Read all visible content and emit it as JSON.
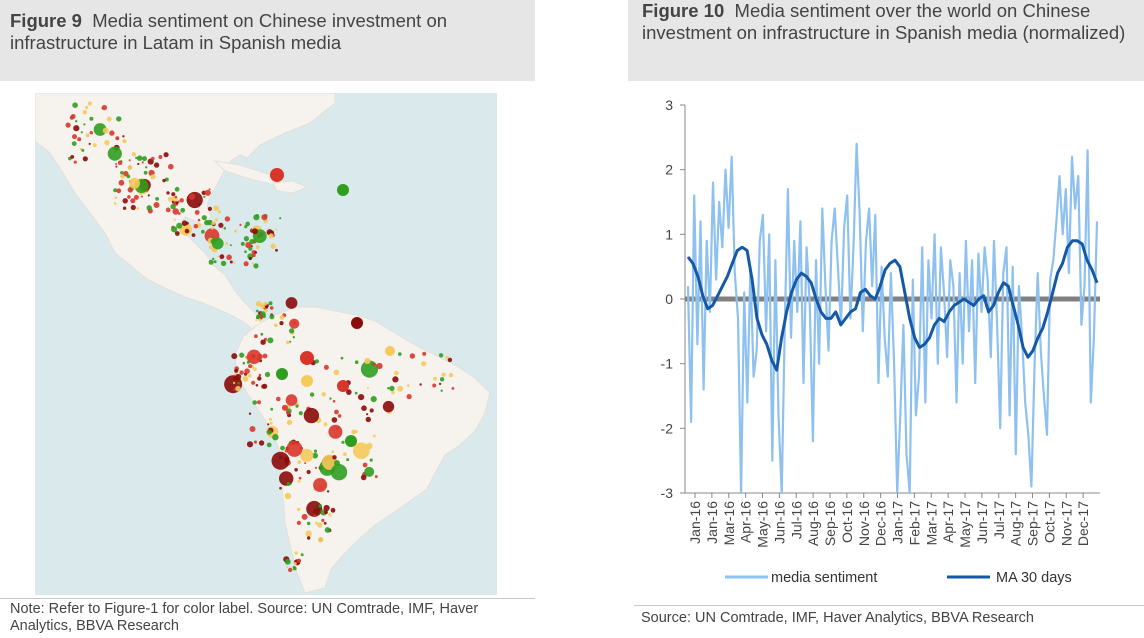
{
  "figure9": {
    "label": "Figure 9",
    "title": "Media sentiment on Chinese investment on infrastructure in Latam in Spanish media",
    "note": "Note: Refer to Figure-1 for color label.  Source: UN Comtrade, IMF, Haver Analytics, BBVA Research"
  },
  "figure10": {
    "label": "Figure 10",
    "title": "Media sentiment over the world on Chinese investment on infrastructure in Spanish media (normalized)",
    "note": "Source:  UN Comtrade, IMF, Haver Analytics, BBVA Research"
  },
  "colors": {
    "sea": "#d9e9ec",
    "land": "#f6f3ee",
    "positive": "#2f9e1f",
    "negative": "#d9362b",
    "dark_negative": "#8b0a0a",
    "neutral": "#f5c95a",
    "media_sentiment": "#8ec1ef",
    "ma30": "#1559a6",
    "zero_line": "#808080"
  },
  "chart_data": {
    "type": "line",
    "ylim": [
      -3,
      3
    ],
    "yticks": [
      "3",
      "2",
      "1",
      "0",
      "-1",
      "-2",
      "-3"
    ],
    "x_ticks": [
      "Jan-16",
      "Jan-16",
      "Mar-16",
      "Apr-16",
      "May-16",
      "Jun-16",
      "Jul-16",
      "Aug-16",
      "Sep-16",
      "Oct-16",
      "Nov-16",
      "Dec-16",
      "Jan-17",
      "Feb-17",
      "Mar-17",
      "Apr-17",
      "May-17",
      "Jun-17",
      "Jul-17",
      "Aug-17",
      "Sep-17",
      "Oct-17",
      "Nov-17",
      "Dec-17"
    ],
    "series": [
      {
        "name": "media sentiment",
        "color": "#8ec1ef",
        "values": [
          0.2,
          -1.9,
          1.6,
          -0.7,
          1.2,
          -1.4,
          0.9,
          -0.2,
          1.8,
          0.3,
          1.5,
          0.8,
          2.0,
          1.1,
          2.2,
          0.4,
          -0.3,
          -3.0,
          0.1,
          -1.6,
          0.5,
          -1.2,
          -0.8,
          0.9,
          1.3,
          -0.5,
          1.0,
          -2.5,
          0.6,
          -1.8,
          -3.0,
          -0.4,
          1.7,
          -0.6,
          0.9,
          -0.2,
          1.2,
          -1.3,
          0.8,
          -0.1,
          -2.2,
          0.6,
          -1.0,
          1.4,
          0.2,
          -0.8,
          0.9,
          1.4,
          0.5,
          -0.4,
          1.1,
          1.6,
          -0.3,
          0.8,
          2.4,
          1.3,
          -0.5,
          0.9,
          1.4,
          0.2,
          1.3,
          -1.3,
          0.5,
          -0.6,
          -1.2,
          0.4,
          -1.0,
          -3.0,
          -1.8,
          -0.4,
          -2.4,
          -3.0,
          0.3,
          -1.8,
          -1.2,
          0.8,
          -1.6,
          0.6,
          -0.3,
          1.0,
          -1.0,
          0.8,
          0.1,
          -0.9,
          0.6,
          0.2,
          -1.6,
          0.4,
          -1.0,
          0.9,
          -0.5,
          0.6,
          -1.3,
          0.7,
          -0.2,
          0.8,
          0.3,
          -0.9,
          0.9,
          -0.4,
          -2.0,
          0.4,
          0.8,
          -1.8,
          0.5,
          -2.4,
          0.2,
          -0.6,
          -1.6,
          -2.1,
          -2.9,
          -1.0,
          0.4,
          -0.8,
          -1.5,
          -2.1,
          0.3,
          0.6,
          1.2,
          1.9,
          1.0,
          1.7,
          0.4,
          2.2,
          1.4,
          1.9,
          -0.4,
          0.2,
          2.3,
          -1.6,
          -0.6,
          1.2
        ],
        "n_points": 132
      },
      {
        "name": "MA 30 days",
        "color": "#1559a6",
        "values": [
          0.65,
          0.55,
          0.35,
          0.05,
          -0.15,
          -0.1,
          0.05,
          0.2,
          0.35,
          0.55,
          0.75,
          0.8,
          0.75,
          0.3,
          -0.3,
          -0.55,
          -0.7,
          -0.95,
          -1.1,
          -0.6,
          -0.2,
          0.1,
          0.3,
          0.4,
          0.35,
          0.25,
          0.0,
          -0.2,
          -0.3,
          -0.3,
          -0.2,
          -0.4,
          -0.3,
          -0.2,
          -0.15,
          0.1,
          0.15,
          0.05,
          0.0,
          0.2,
          0.45,
          0.55,
          0.6,
          0.5,
          0.1,
          -0.3,
          -0.6,
          -0.75,
          -0.7,
          -0.6,
          -0.4,
          -0.3,
          -0.35,
          -0.2,
          -0.1,
          -0.05,
          0.0,
          -0.05,
          -0.1,
          0.0,
          0.05,
          -0.2,
          -0.1,
          0.1,
          0.25,
          0.2,
          -0.1,
          -0.4,
          -0.75,
          -0.9,
          -0.8,
          -0.6,
          -0.45,
          -0.2,
          0.1,
          0.4,
          0.55,
          0.8,
          0.9,
          0.9,
          0.85,
          0.6,
          0.45,
          0.25
        ]
      }
    ]
  }
}
